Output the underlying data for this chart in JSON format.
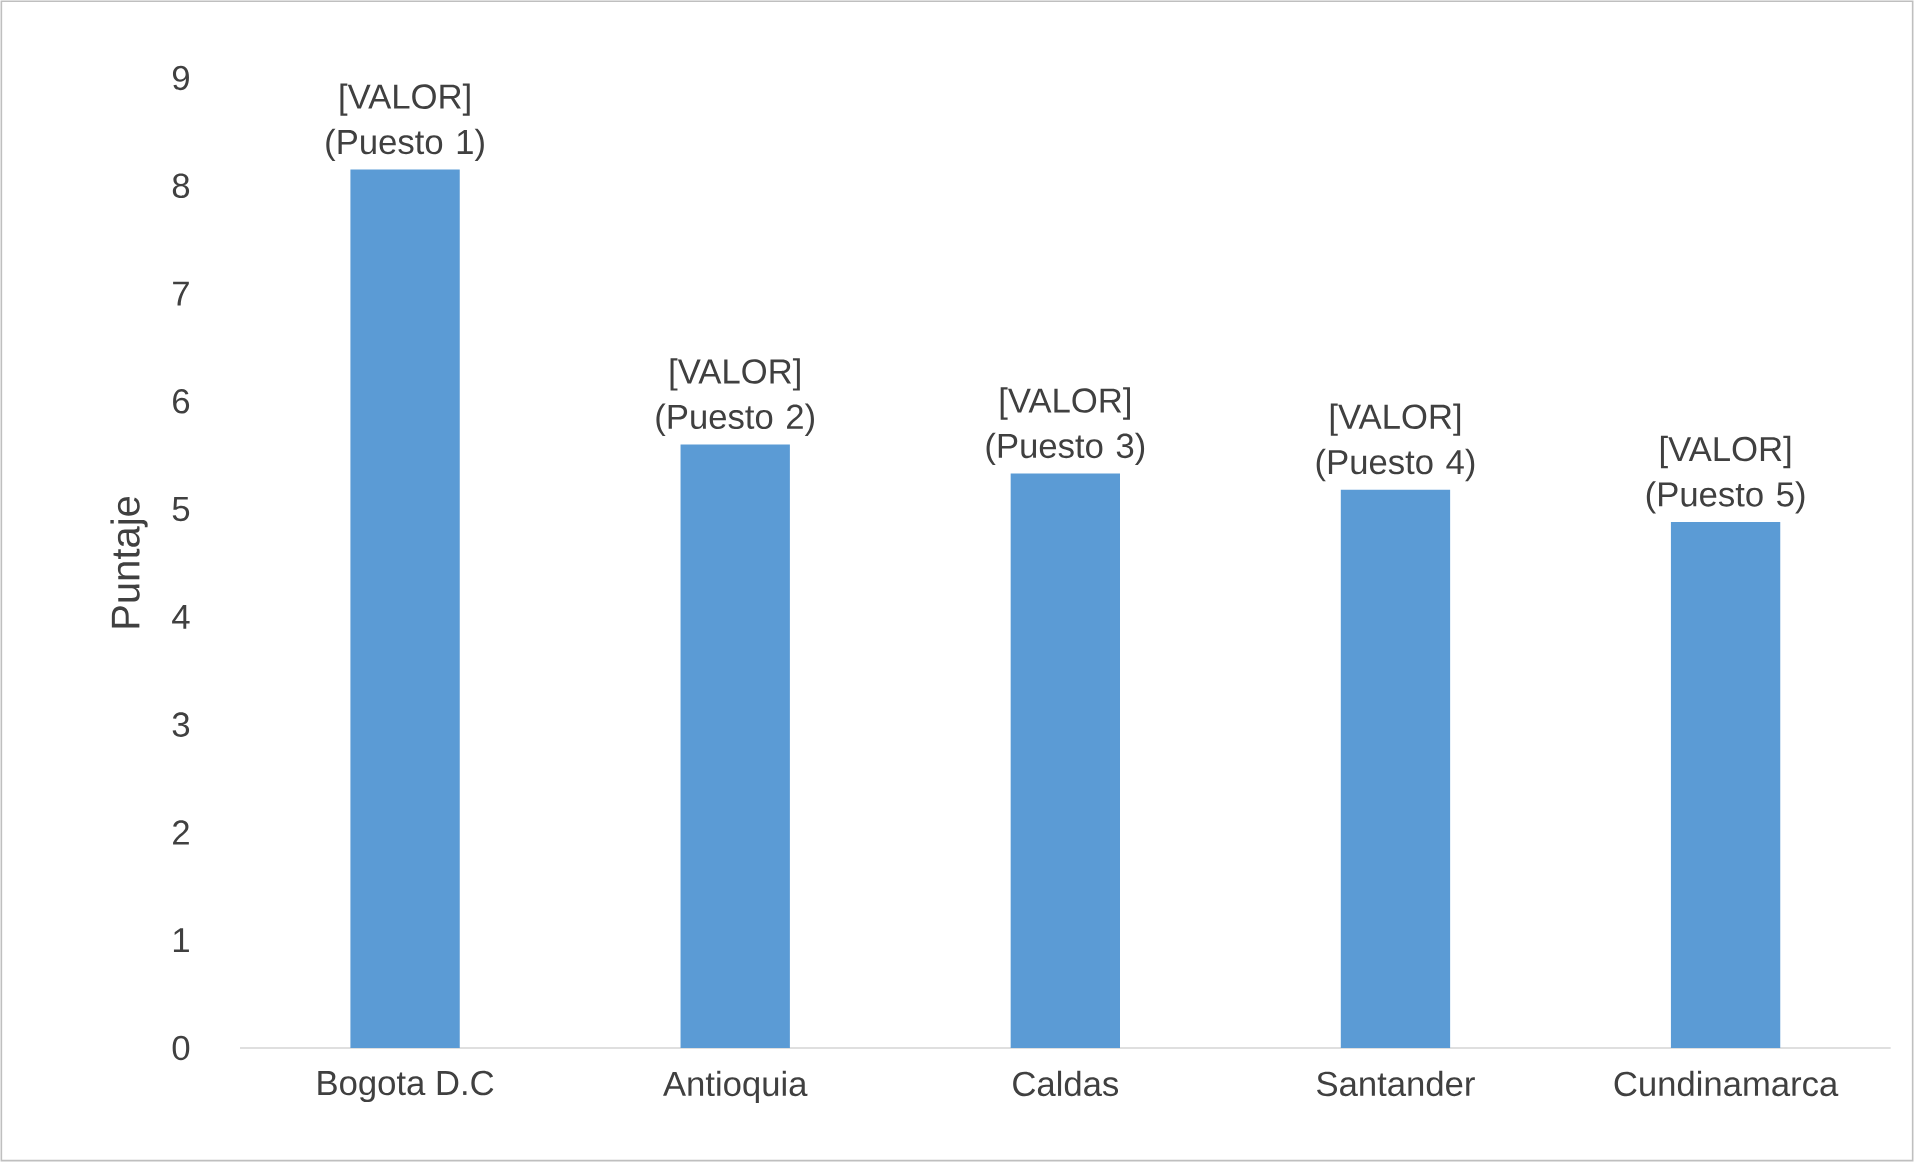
{
  "chart_data": {
    "type": "bar",
    "ylabel": "Puntaje",
    "categories": [
      "Bogota D.C",
      "Antioquia",
      "Caldas",
      "Santander",
      "Cundinamarca"
    ],
    "values": [
      8.15,
      5.6,
      5.33,
      5.18,
      4.88
    ],
    "color": "#5b9bd5",
    "ylim": [
      0,
      9
    ],
    "yticks": [
      0,
      1,
      2,
      3,
      4,
      5,
      6,
      7,
      8,
      9
    ],
    "value_labels": [
      "[VALOR] (Puesto 1)",
      "[VALOR] (Puesto 2)",
      "[VALOR] (Puesto 3)",
      "[VALOR] (Puesto 4)",
      "[VALOR] (Puesto 5)"
    ]
  }
}
